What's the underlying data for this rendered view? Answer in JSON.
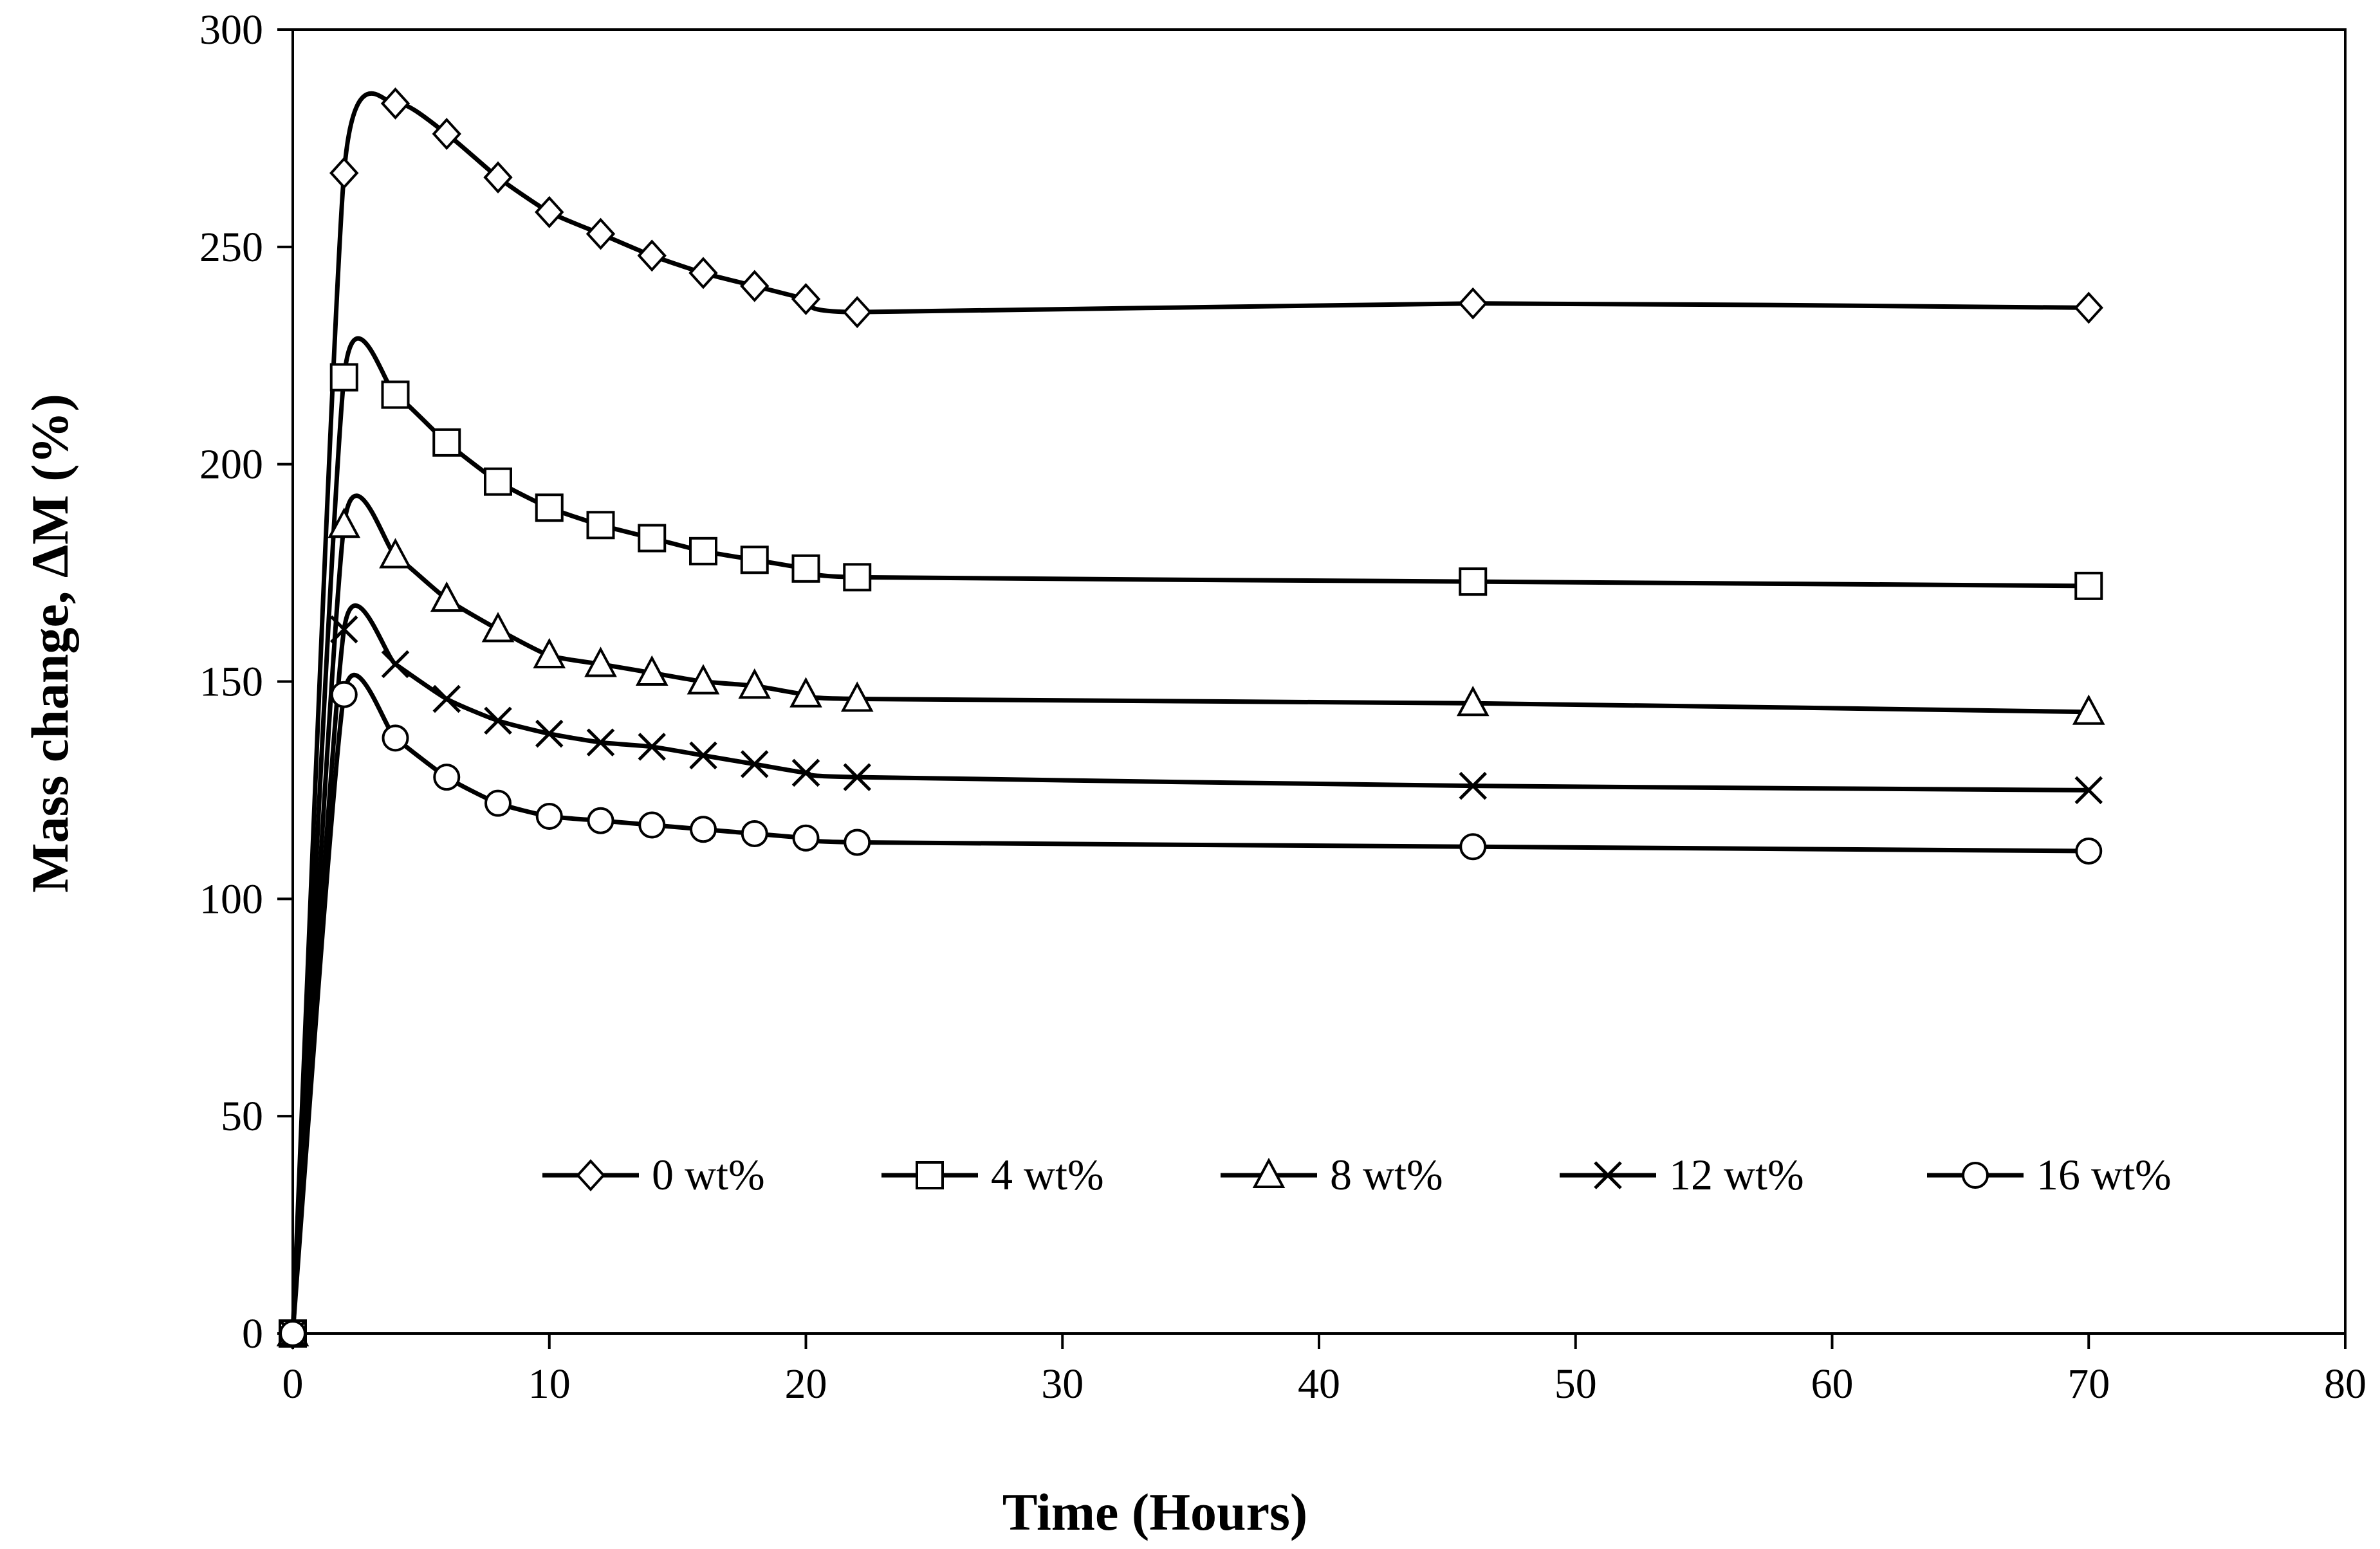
{
  "chart_data": {
    "type": "line",
    "title": "",
    "xlabel": "Time (Hours)",
    "ylabel": "Mass change, ΔM (%)",
    "xlim": [
      0,
      80
    ],
    "ylim": [
      0,
      300
    ],
    "xticks": [
      0,
      10,
      20,
      30,
      40,
      50,
      60,
      70,
      80
    ],
    "yticks": [
      0,
      50,
      100,
      150,
      200,
      250,
      300
    ],
    "grid": false,
    "legend_position": "bottom-right, inside plot",
    "series": [
      {
        "name": "0 wt%",
        "marker": "diamond",
        "x": [
          0,
          2,
          4,
          6,
          8,
          10,
          12,
          14,
          16,
          18,
          20,
          22,
          46,
          70
        ],
        "y": [
          0,
          267,
          283,
          276,
          266,
          258,
          253,
          248,
          244,
          241,
          238,
          235,
          237,
          236
        ]
      },
      {
        "name": "4 wt%",
        "marker": "square",
        "x": [
          0,
          2,
          4,
          6,
          8,
          10,
          12,
          14,
          16,
          18,
          20,
          22,
          46,
          70
        ],
        "y": [
          0,
          220,
          216,
          205,
          196,
          190,
          186,
          183,
          180,
          178,
          176,
          174,
          173,
          172
        ]
      },
      {
        "name": "8 wt%",
        "marker": "triangle",
        "x": [
          0,
          2,
          4,
          6,
          8,
          10,
          12,
          14,
          16,
          18,
          20,
          22,
          46,
          70
        ],
        "y": [
          0,
          186,
          179,
          169,
          162,
          156,
          154,
          152,
          150,
          149,
          147,
          146,
          145,
          143
        ]
      },
      {
        "name": "12 wt%",
        "marker": "x",
        "x": [
          0,
          2,
          4,
          6,
          8,
          10,
          12,
          14,
          16,
          18,
          20,
          22,
          46,
          70
        ],
        "y": [
          0,
          162,
          154,
          146,
          141,
          138,
          136,
          135,
          133,
          131,
          129,
          128,
          126,
          125
        ]
      },
      {
        "name": "16 wt%",
        "marker": "circle",
        "x": [
          0,
          2,
          4,
          6,
          8,
          10,
          12,
          14,
          16,
          18,
          20,
          22,
          46,
          70
        ],
        "y": [
          0,
          147,
          137,
          128,
          122,
          119,
          118,
          117,
          116,
          115,
          114,
          113,
          112,
          111
        ]
      }
    ]
  }
}
